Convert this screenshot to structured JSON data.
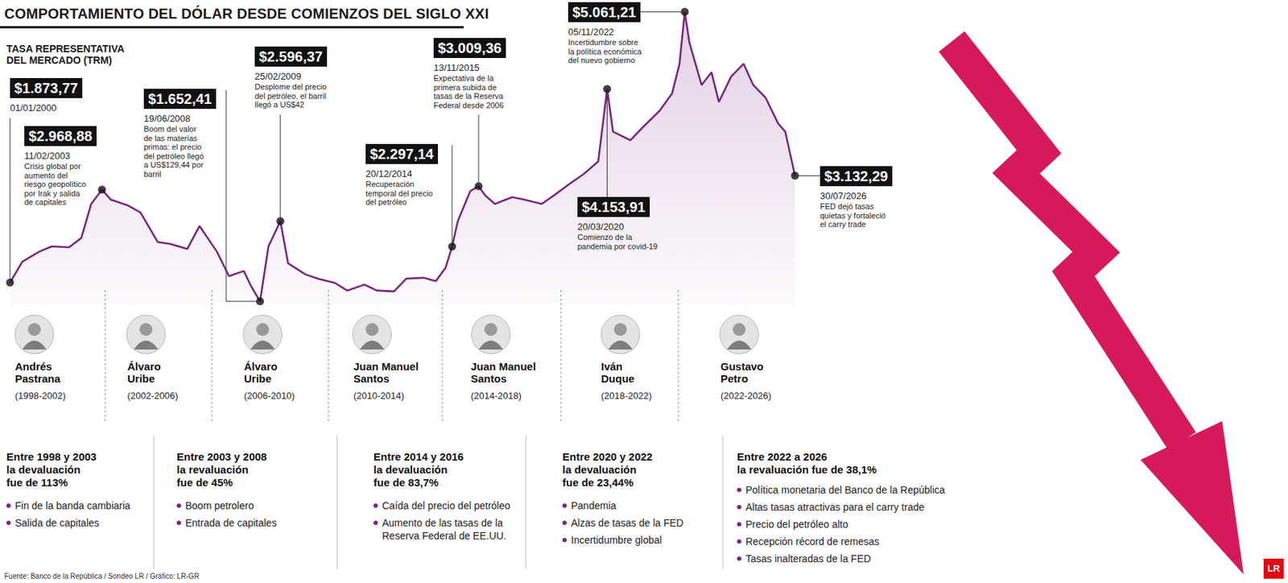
{
  "chart_data": {
    "type": "line",
    "title": "COMPORTAMIENTO DEL DÓLAR DESDE COMIENZOS DEL SIGLO XXI",
    "subtitle": [
      "TASA REPRESENTATIVA",
      "DEL MERCADO (TRM)"
    ],
    "color": "#7b2482",
    "grid": false,
    "tick_labels": false,
    "xlim": [
      "2000-01-01",
      "2026-07-30"
    ],
    "ylim": [
      1600,
      5100
    ],
    "x": [
      "2000-01-01",
      "2000-06",
      "2001-01",
      "2001-06",
      "2002-01",
      "2002-06",
      "2002-10",
      "2003-02-11",
      "2003-06",
      "2004-01",
      "2004-06",
      "2005-01",
      "2005-06",
      "2006-01",
      "2006-06",
      "2007-01",
      "2007-06",
      "2007-12",
      "2008-03",
      "2008-06-19",
      "2008-10",
      "2009-02-25",
      "2009-06",
      "2010-01",
      "2010-06",
      "2011-01",
      "2011-06",
      "2012-01",
      "2012-06",
      "2013-01",
      "2013-06",
      "2014-01",
      "2014-06",
      "2014-10",
      "2014-12-20",
      "2015-03",
      "2015-08",
      "2015-11-13",
      "2016-02",
      "2016-06",
      "2017-01",
      "2017-06",
      "2018-01",
      "2018-06",
      "2019-01",
      "2019-06",
      "2019-12",
      "2020-03-20",
      "2020-06",
      "2021-01",
      "2021-06",
      "2022-01",
      "2022-06",
      "2022-09",
      "2022-11-05",
      "2023-01",
      "2023-06",
      "2023-10",
      "2024-01",
      "2024-06",
      "2024-11",
      "2025-03",
      "2025-08",
      "2026-01",
      "2026-04",
      "2026-07-30"
    ],
    "values": [
      1873.77,
      2120,
      2240,
      2300,
      2290,
      2400,
      2800,
      2968.88,
      2850,
      2780,
      2700,
      2350,
      2330,
      2270,
      2540,
      2240,
      1950,
      2010,
      1830,
      1652.41,
      2300,
      2596.37,
      2100,
      1970,
      1920,
      1870,
      1780,
      1850,
      1780,
      1770,
      1920,
      1930,
      1890,
      2050,
      2297.14,
      2600,
      2950,
      3009.36,
      2900,
      2800,
      2880,
      2850,
      2800,
      2900,
      3050,
      3150,
      3300,
      4153.91,
      3650,
      3550,
      3700,
      3900,
      4100,
      4450,
      5061.21,
      4700,
      4200,
      4350,
      4000,
      4300,
      4450,
      4200,
      4050,
      3750,
      3650,
      3132.29
    ],
    "annotations": [
      {
        "x": "2000-01-01",
        "value": 1873.77,
        "value_label": "$1.873,77",
        "date_label": "01/01/2000",
        "text": []
      },
      {
        "x": "2003-02-11",
        "value": 2968.88,
        "value_label": "$2.968,88",
        "date_label": "11/02/2003",
        "text": [
          "Crisis global por",
          "aumento del",
          "riesgo geopolítico",
          "por Irak y salida",
          "de capitales"
        ]
      },
      {
        "x": "2008-06-19",
        "value": 1652.41,
        "value_label": "$1.652,41",
        "date_label": "19/06/2008",
        "text": [
          "Boom del valor",
          "de las materias",
          "primas: el precio",
          "del petróleo llegó",
          "a US$129,44 por",
          "barril"
        ]
      },
      {
        "x": "2009-02-25",
        "value": 2596.37,
        "value_label": "$2.596,37",
        "date_label": "25/02/2009",
        "text": [
          "Desplome del precio",
          "del petróleo, el barril",
          "llegó a US$42"
        ]
      },
      {
        "x": "2014-12-20",
        "value": 2297.14,
        "value_label": "$2.297,14",
        "date_label": "20/12/2014",
        "text": [
          "Recuperación",
          "temporal del precio",
          "del petróleo"
        ]
      },
      {
        "x": "2015-11-13",
        "value": 3009.36,
        "value_label": "$3.009,36",
        "date_label": "13/11/2015",
        "text": [
          "Expectativa de la",
          "primera subida de",
          "tasas de la Reserva",
          "Federal desde 2006"
        ]
      },
      {
        "x": "2020-03-20",
        "value": 4153.91,
        "value_label": "$4.153,91",
        "date_label": "20/03/2020",
        "text": [
          "Comienzo de la",
          "pandemia por covid-19"
        ]
      },
      {
        "x": "2022-11-05",
        "value": 5061.21,
        "value_label": "$5.061,21",
        "date_label": "05/11/2022",
        "text": [
          "Incertidumbre sobre",
          "la política económica",
          "del nuevo gobierno"
        ]
      },
      {
        "x": "2026-07-30",
        "value": 3132.29,
        "value_label": "$3.132,29",
        "date_label": "30/07/2026",
        "text": [
          "FED dejó tasas",
          "quietas y fortaleció",
          "el carry trade"
        ]
      }
    ],
    "periods": [
      {
        "name": [
          "Andrés",
          "Pastrana"
        ],
        "years": "(1998-2002)"
      },
      {
        "name": [
          "Álvaro",
          "Uribe"
        ],
        "years": "(2002-2006)"
      },
      {
        "name": [
          "Álvaro",
          "Uribe"
        ],
        "years": "(2006-2010)"
      },
      {
        "name": [
          "Juan Manuel",
          "Santos"
        ],
        "years": "(2010-2014)"
      },
      {
        "name": [
          "Juan Manuel",
          "Santos"
        ],
        "years": "(2014-2018)"
      },
      {
        "name": [
          "Iván",
          "Duque"
        ],
        "years": "(2018-2022)"
      },
      {
        "name": [
          "Gustavo",
          "Petro"
        ],
        "years": "(2022-2026)"
      }
    ],
    "summaries": [
      {
        "heading": [
          "Entre 1998 y 2003",
          "la devaluación",
          "fue de 113%"
        ],
        "items": [
          "Fin de la banda cambiaria",
          "Salida de capitales"
        ]
      },
      {
        "heading": [
          "Entre 2003 y 2008",
          "la revaluación",
          "fue de 45%"
        ],
        "items": [
          "Boom petrolero",
          "Entrada de capitales"
        ]
      },
      {
        "heading": [
          "Entre 2014 y 2016",
          "la devaluación",
          "fue de 83,7%"
        ],
        "items": [
          "Caída del precio del petróleo",
          "Aumento de las tasas de la Reserva Federal de EE.UU."
        ]
      },
      {
        "heading": [
          "Entre 2020 y 2022",
          "la devaluación",
          "fue de 23,44%"
        ],
        "items": [
          "Pandemia",
          "Alzas de tasas de la FED",
          "Incertidumbre global"
        ]
      },
      {
        "heading": [
          "Entre 2022 a 2026",
          "la revaluación fue de 38,1%"
        ],
        "items": [
          "Política monetaria del Banco de la República",
          "Altas tasas atractivas para el carry trade",
          "Precio del petróleo alto",
          "Recepción récord de remesas",
          "Tasas inalteradas de la FED"
        ]
      }
    ],
    "source": "Fuente: Banco de la República / Sondeo LR / Gráfico: LR-GR",
    "logo": "LR"
  }
}
